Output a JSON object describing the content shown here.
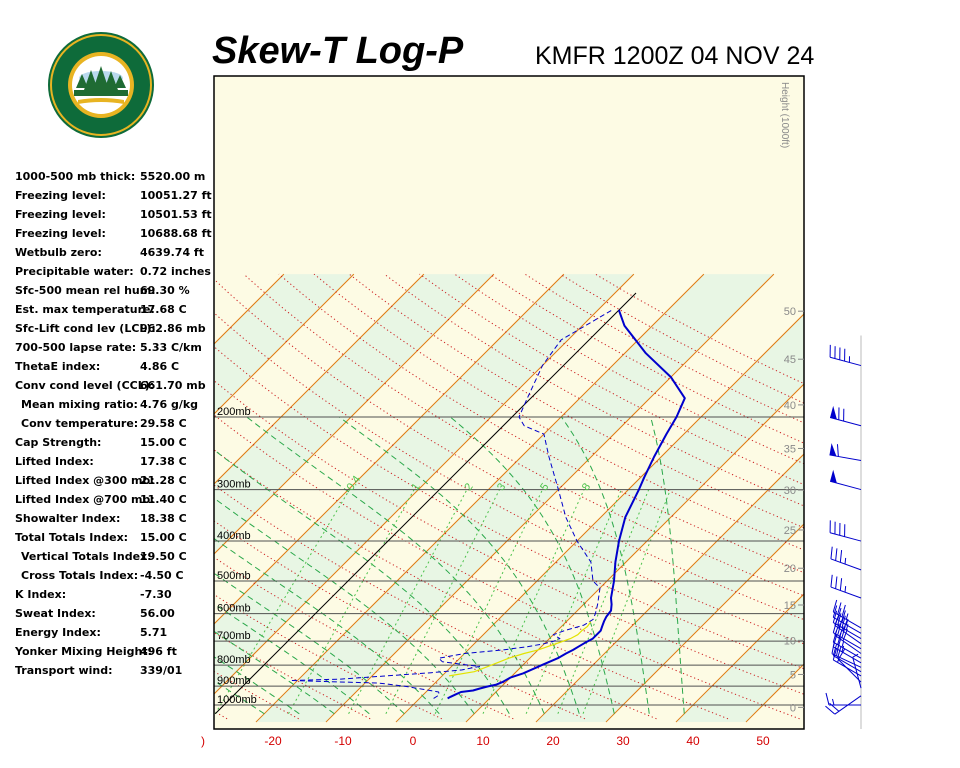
{
  "title": "Skew-T Log-P",
  "subtitle": "KMFR 1200Z 04 NOV 24",
  "logo": {
    "top_text": "OREGON",
    "bottom_text": "DEPARTMENT OF FORESTRY",
    "colors": {
      "ring": "#0e6b3a",
      "gold": "#e8b422",
      "tree": "#1f6b33"
    }
  },
  "stats": [
    {
      "label": "1000-500 mb thick:",
      "value": "5520.00 m"
    },
    {
      "label": "Freezing level:",
      "value": "10051.27 ft"
    },
    {
      "label": "Freezing level:",
      "value": "10501.53 ft"
    },
    {
      "label": "Freezing level:",
      "value": "10688.68 ft"
    },
    {
      "label": "Wetbulb zero:",
      "value": "4639.74 ft"
    },
    {
      "label": "Precipitable water:",
      "value": "0.72 inches"
    },
    {
      "label": "Sfc-500 mean rel hum:",
      "value": "69.30 %"
    },
    {
      "label": "Est. max temperature:",
      "value": "17.68 C"
    },
    {
      "label": "Sfc-Lift cond lev (LCL):",
      "value": "962.86 mb"
    },
    {
      "label": "700-500 lapse rate:",
      "value": "5.33 C/km"
    },
    {
      "label": "ThetaE index:",
      "value": "4.86 C"
    },
    {
      "label": "Conv cond level (CCL):",
      "value": "661.70 mb"
    },
    {
      "label": "Mean mixing ratio:",
      "value": "4.76 g/kg",
      "indent": true
    },
    {
      "label": "Conv temperature:",
      "value": "29.58 C",
      "indent": true
    },
    {
      "label": "Cap Strength:",
      "value": "15.00 C"
    },
    {
      "label": "Lifted Index:",
      "value": "17.38 C"
    },
    {
      "label": "Lifted Index @300 mb:",
      "value": "21.28 C"
    },
    {
      "label": "Lifted Index @700 mb:",
      "value": "11.40 C"
    },
    {
      "label": "Showalter Index:",
      "value": "18.38 C"
    },
    {
      "label": "Total Totals Index:",
      "value": "15.00 C"
    },
    {
      "label": "Vertical Totals Index:",
      "value": "19.50 C",
      "indent": true
    },
    {
      "label": "Cross Totals Index:",
      "value": "-4.50 C",
      "indent": true
    },
    {
      "label": "K Index:",
      "value": "-7.30"
    },
    {
      "label": "Sweat Index:",
      "value": "56.00"
    },
    {
      "label": "Energy Index:",
      "value": "5.71"
    },
    {
      "label": "Yonker Mixing Height:",
      "value": "496 ft"
    },
    {
      "label": "Transport wind:",
      "value": "339/01"
    }
  ],
  "chart_data": {
    "type": "line",
    "chart_kind": "skew-t log-p",
    "xlim": [
      -30,
      55
    ],
    "ylim_mb": [
      1050,
      100
    ],
    "x_ticks": [
      -30,
      -20,
      -10,
      0,
      10,
      20,
      30,
      40,
      50
    ],
    "x_tick_labels": [
      ")",
      "-20",
      "-10",
      "0",
      "10",
      "20",
      "30",
      "40",
      "50"
    ],
    "pressure_levels": [
      {
        "mb": 200,
        "label": "200mb"
      },
      {
        "mb": 300,
        "label": "300mb"
      },
      {
        "mb": 400,
        "label": "400mb"
      },
      {
        "mb": 500,
        "label": "500mb"
      },
      {
        "mb": 600,
        "label": "600mb"
      },
      {
        "mb": 700,
        "label": "700mb"
      },
      {
        "mb": 800,
        "label": "800mb"
      },
      {
        "mb": 900,
        "label": "900mb"
      },
      {
        "mb": 1000,
        "label": "1000mb"
      }
    ],
    "height_axis": {
      "label": "Height (1000ft)",
      "ticks": [
        "0",
        "5",
        "10",
        "15",
        "20",
        "25",
        "30",
        "35",
        "40",
        "45",
        "50"
      ]
    },
    "mixing_ratio_labels": [
      "0.4",
      "1",
      "2",
      "3",
      "5",
      "8"
    ],
    "series": [
      {
        "role": "temperature",
        "color": "#0000cc",
        "style": "solid",
        "points": [
          [
            964,
            4
          ],
          [
            955,
            4.2
          ],
          [
            942,
            4.6
          ],
          [
            930,
            5
          ],
          [
            922,
            6.5
          ],
          [
            912,
            7.2
          ],
          [
            902,
            8
          ],
          [
            892,
            9
          ],
          [
            880,
            9.5
          ],
          [
            858,
            10
          ],
          [
            838,
            11.2
          ],
          [
            818,
            12
          ],
          [
            798,
            12.8
          ],
          [
            788,
            13.2
          ],
          [
            770,
            14
          ],
          [
            750,
            14.5
          ],
          [
            735,
            15
          ],
          [
            722,
            15.3
          ],
          [
            710,
            15.6
          ],
          [
            702,
            15.8
          ],
          [
            690,
            16.2
          ],
          [
            675,
            16.2
          ],
          [
            660,
            16.2
          ],
          [
            645,
            15.8
          ],
          [
            625,
            15.3
          ],
          [
            610,
            15
          ],
          [
            590,
            14.8
          ],
          [
            570,
            14
          ],
          [
            550,
            13
          ],
          [
            500,
            11
          ],
          [
            450,
            8.5
          ],
          [
            400,
            6
          ],
          [
            350,
            3.5
          ],
          [
            300,
            1.5
          ],
          [
            280,
            0.5
          ],
          [
            250,
            -1
          ],
          [
            220,
            -2.5
          ],
          [
            200,
            -3.5
          ],
          [
            180,
            -5
          ],
          [
            160,
            -10
          ],
          [
            140,
            -17
          ],
          [
            120,
            -24
          ],
          [
            110,
            -27
          ]
        ]
      },
      {
        "role": "dewpoint",
        "color": "#0000cc",
        "style": "dashed",
        "points": [
          [
            964,
            2
          ],
          [
            945,
            2.3
          ],
          [
            930,
            1.8
          ],
          [
            915,
            -1
          ],
          [
            900,
            -4
          ],
          [
            885,
            -8
          ],
          [
            872,
            -21
          ],
          [
            865,
            -14
          ],
          [
            850,
            -8
          ],
          [
            835,
            -2
          ],
          [
            822,
            2
          ],
          [
            806,
            4
          ],
          [
            796,
            1
          ],
          [
            785,
            -2
          ],
          [
            770,
            -3
          ],
          [
            750,
            0
          ],
          [
            735,
            5
          ],
          [
            722,
            8
          ],
          [
            710,
            10
          ],
          [
            700,
            11
          ],
          [
            690,
            11.5
          ],
          [
            675,
            10
          ],
          [
            660,
            11
          ],
          [
            640,
            13
          ],
          [
            620,
            13.5
          ],
          [
            600,
            13
          ],
          [
            570,
            12
          ],
          [
            520,
            10
          ],
          [
            500,
            8
          ],
          [
            450,
            5
          ],
          [
            400,
            0
          ],
          [
            350,
            -5
          ],
          [
            300,
            -10
          ],
          [
            250,
            -16
          ],
          [
            220,
            -20
          ],
          [
            210,
            -24
          ],
          [
            200,
            -26
          ],
          [
            180,
            -27.5
          ],
          [
            150,
            -30
          ],
          [
            130,
            -31
          ],
          [
            110,
            -28
          ]
        ]
      },
      {
        "role": "wetbulb",
        "color": "#e3e300",
        "style": "solid",
        "points": [
          [
            850,
            1
          ],
          [
            830,
            4
          ],
          [
            810,
            5
          ],
          [
            790,
            6
          ],
          [
            770,
            7
          ],
          [
            750,
            8.5
          ],
          [
            735,
            10
          ],
          [
            720,
            11
          ],
          [
            705,
            12
          ],
          [
            690,
            13
          ],
          [
            675,
            13.5
          ],
          [
            660,
            13.5
          ],
          [
            645,
            13.7
          ],
          [
            628,
            13.5
          ]
        ]
      }
    ],
    "wind_barbs": [
      {
        "mb": 1000,
        "dir": 270,
        "speed_kt": 15
      },
      {
        "mb": 950,
        "dir": 235,
        "speed_kt": 20
      },
      {
        "mb": 910,
        "dir": 345,
        "speed_kt": 5
      },
      {
        "mb": 880,
        "dir": 315,
        "speed_kt": 10
      },
      {
        "mb": 850,
        "dir": 300,
        "speed_kt": 15
      },
      {
        "mb": 830,
        "dir": 300,
        "speed_kt": 20
      },
      {
        "mb": 810,
        "dir": 295,
        "speed_kt": 20
      },
      {
        "mb": 790,
        "dir": 300,
        "speed_kt": 25
      },
      {
        "mb": 770,
        "dir": 300,
        "speed_kt": 25
      },
      {
        "mb": 750,
        "dir": 305,
        "speed_kt": 30
      },
      {
        "mb": 730,
        "dir": 300,
        "speed_kt": 30
      },
      {
        "mb": 710,
        "dir": 305,
        "speed_kt": 30
      },
      {
        "mb": 690,
        "dir": 300,
        "speed_kt": 35
      },
      {
        "mb": 670,
        "dir": 300,
        "speed_kt": 35
      },
      {
        "mb": 650,
        "dir": 300,
        "speed_kt": 35
      },
      {
        "mb": 550,
        "dir": 290,
        "speed_kt": 35
      },
      {
        "mb": 470,
        "dir": 290,
        "speed_kt": 35
      },
      {
        "mb": 400,
        "dir": 285,
        "speed_kt": 40
      },
      {
        "mb": 300,
        "dir": 285,
        "speed_kt": 50
      },
      {
        "mb": 255,
        "dir": 280,
        "speed_kt": 60
      },
      {
        "mb": 210,
        "dir": 285,
        "speed_kt": 70
      },
      {
        "mb": 150,
        "dir": 285,
        "speed_kt": 45
      }
    ],
    "colors": {
      "isotherm": "#e07a10",
      "dry_adiabat": "#cc2020",
      "moist_adiabat": "#2aa84a",
      "mixing_ratio": "#4cc24c",
      "isobar": "#505050",
      "band_light": "#fdfbe4",
      "band_green": "#e8f6e4",
      "parcel": "#000000",
      "tick_label": "#d40000"
    }
  }
}
